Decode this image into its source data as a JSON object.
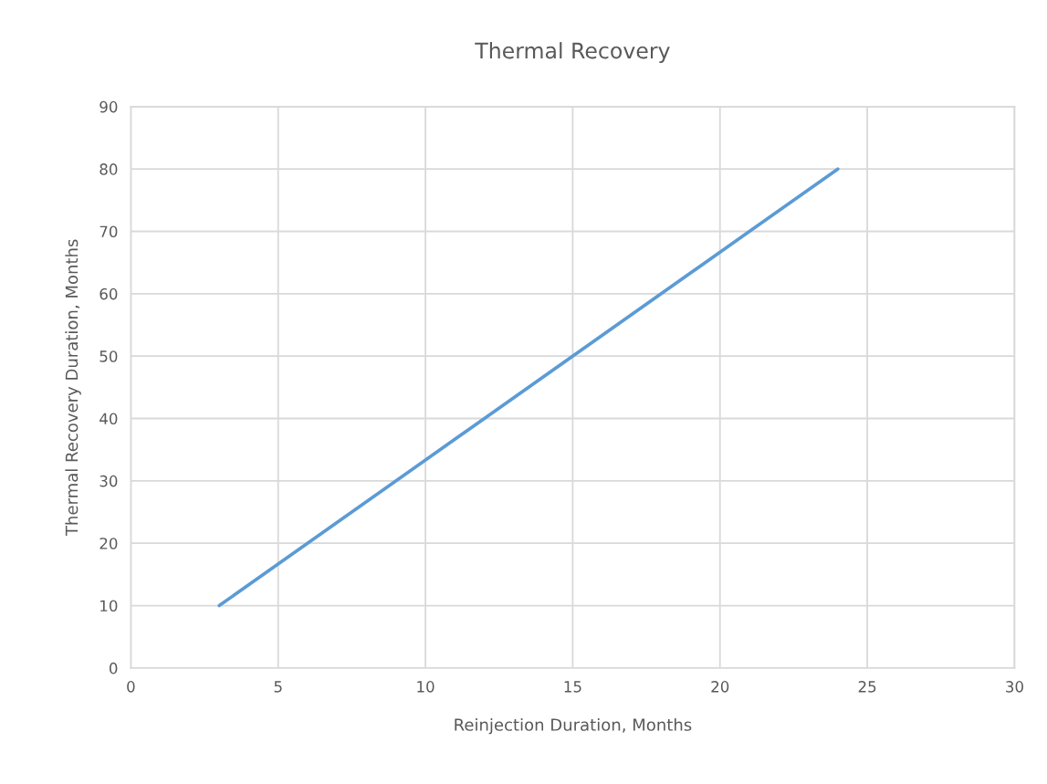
{
  "chart_data": {
    "type": "line",
    "title": "Thermal Recovery",
    "xlabel": "Reinjection Duration, Months",
    "ylabel": "Thermal Recovery Duration, Months",
    "x": [
      3,
      24
    ],
    "series": [
      {
        "color": "#5b9bd5",
        "values": [
          10,
          80
        ]
      }
    ],
    "xlim": [
      0,
      30
    ],
    "xticks": [
      0,
      5,
      10,
      15,
      20,
      25,
      30
    ],
    "ylim": [
      0,
      90
    ],
    "yticks": [
      0,
      10,
      20,
      30,
      40,
      50,
      60,
      70,
      80,
      90
    ],
    "grid": true,
    "line_style": "solid",
    "marker": "none"
  }
}
